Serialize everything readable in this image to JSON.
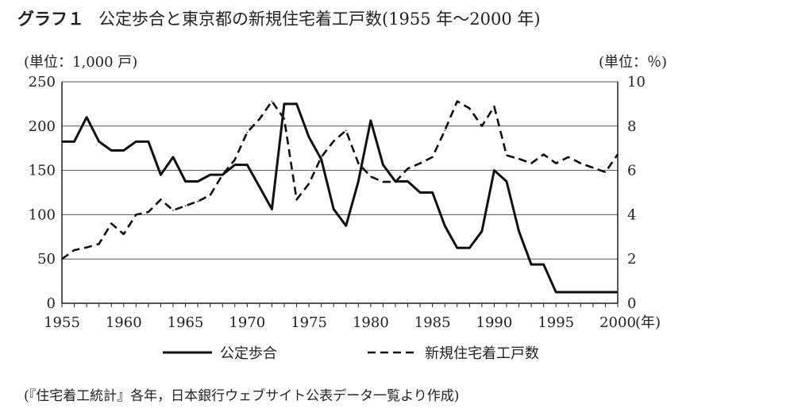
{
  "title": {
    "label": "グラフ１",
    "text": "公定歩合と東京都の新規住宅着工戸数(1955 年～2000 年)"
  },
  "source_note": "(『住宅着工統計』各年，日本銀行ウェブサイト公表データ一覧より作成)",
  "chart_data": {
    "type": "line",
    "title": "公定歩合と東京都の新規住宅着工戸数(1955 年～2000 年)",
    "x": [
      1955,
      1956,
      1957,
      1958,
      1959,
      1960,
      1961,
      1962,
      1963,
      1964,
      1965,
      1966,
      1967,
      1968,
      1969,
      1970,
      1971,
      1972,
      1973,
      1974,
      1975,
      1976,
      1977,
      1978,
      1979,
      1980,
      1981,
      1982,
      1983,
      1984,
      1985,
      1986,
      1987,
      1988,
      1989,
      1990,
      1991,
      1992,
      1993,
      1994,
      1995,
      1996,
      1997,
      1998,
      1999,
      2000
    ],
    "x_ticks": [
      "1955",
      "1960",
      "1965",
      "1970",
      "1975",
      "1980",
      "1985",
      "1990",
      "1995",
      "2000"
    ],
    "x_unit": "(年)",
    "y_left": {
      "unit": "(単位：1,000 戸)",
      "ylim": [
        0,
        250
      ],
      "ticks": [
        "0",
        "50",
        "100",
        "150",
        "200",
        "250"
      ]
    },
    "y_right": {
      "unit": "(単位：％)",
      "ylim": [
        0,
        10
      ],
      "ticks": [
        "0",
        "2",
        "4",
        "6",
        "8",
        "10"
      ]
    },
    "grid": "horizontal",
    "legend_position": "bottom",
    "series": [
      {
        "name": "公定歩合",
        "axis": "right",
        "style": "solid",
        "values": [
          7.3,
          7.3,
          8.4,
          7.3,
          6.9,
          6.9,
          7.3,
          7.3,
          5.8,
          6.6,
          5.5,
          5.5,
          5.8,
          5.8,
          6.25,
          6.25,
          5.25,
          4.25,
          9.0,
          9.0,
          7.5,
          6.5,
          4.25,
          3.5,
          5.5,
          8.25,
          6.25,
          5.5,
          5.5,
          5.0,
          5.0,
          3.5,
          2.5,
          2.5,
          3.25,
          6.0,
          5.5,
          3.25,
          1.75,
          1.75,
          0.5,
          0.5,
          0.5,
          0.5,
          0.5,
          0.5
        ]
      },
      {
        "name": "新規住宅着工戸数",
        "axis": "left",
        "style": "dashed",
        "values": [
          50,
          60,
          63,
          67,
          90,
          78,
          100,
          103,
          117,
          105,
          110,
          115,
          122,
          145,
          162,
          193,
          208,
          228,
          208,
          117,
          135,
          165,
          183,
          195,
          158,
          143,
          137,
          137,
          152,
          158,
          165,
          195,
          228,
          220,
          200,
          222,
          167,
          163,
          158,
          168,
          158,
          165,
          158,
          153,
          148,
          168
        ]
      }
    ]
  }
}
